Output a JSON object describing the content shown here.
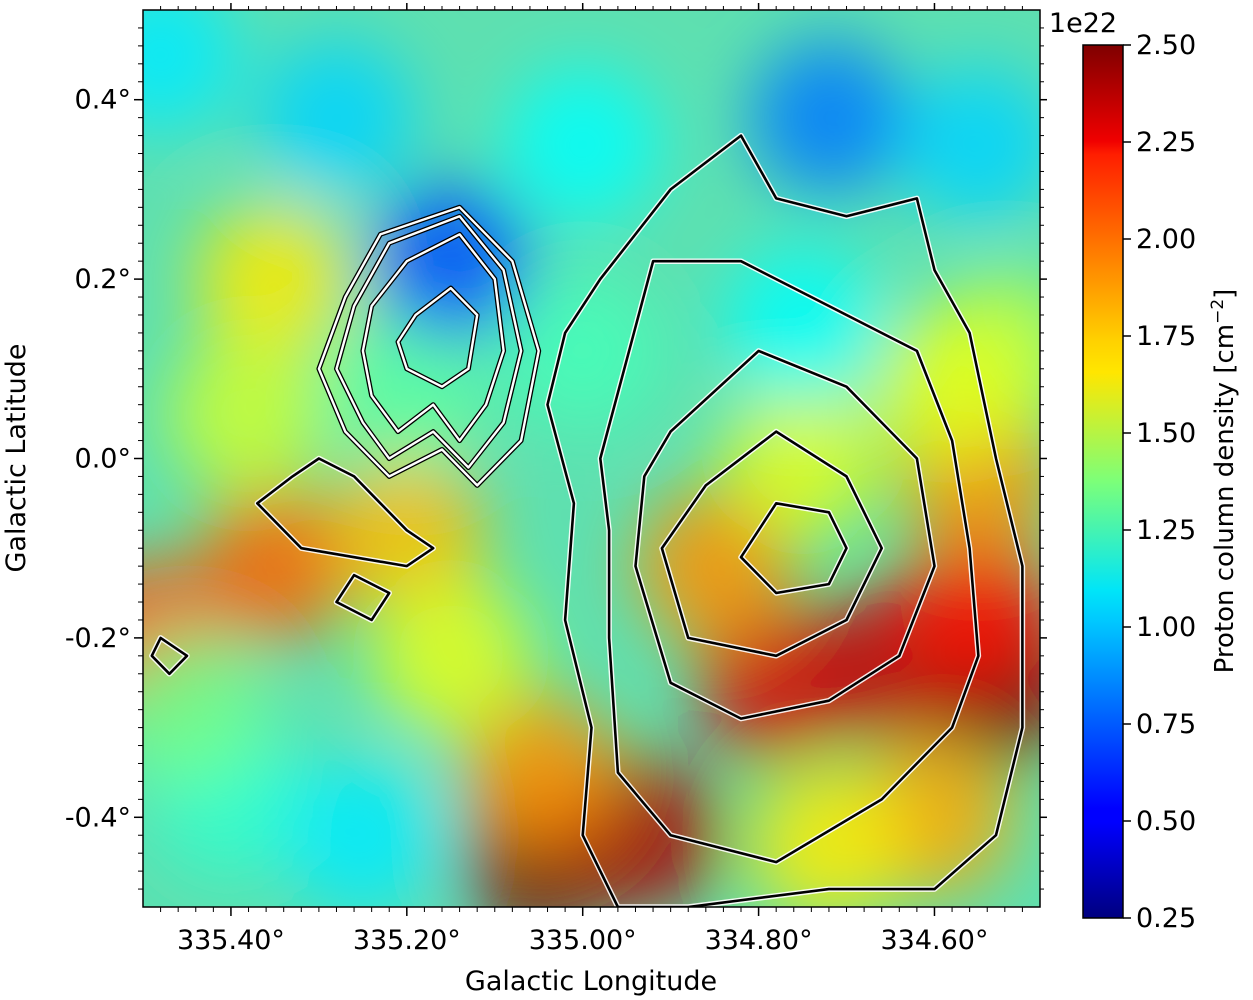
{
  "chart_data": {
    "type": "heatmap",
    "title": "",
    "xlabel": "Galactic Longitude",
    "ylabel": "Galactic Latitude",
    "x_range_deg": [
      335.5,
      334.48
    ],
    "y_range_deg": [
      -0.5,
      0.5
    ],
    "x_ticks": [
      {
        "value": 335.4,
        "label": "335.40°"
      },
      {
        "value": 335.2,
        "label": "335.20°"
      },
      {
        "value": 335.0,
        "label": "335.00°"
      },
      {
        "value": 334.8,
        "label": "334.80°"
      },
      {
        "value": 334.6,
        "label": "334.60°"
      }
    ],
    "y_ticks": [
      {
        "value": 0.4,
        "label": "0.4°"
      },
      {
        "value": 0.2,
        "label": "0.2°"
      },
      {
        "value": 0.0,
        "label": "0.0°"
      },
      {
        "value": -0.2,
        "label": "-0.2°"
      },
      {
        "value": -0.4,
        "label": "-0.4°"
      }
    ],
    "colorbar": {
      "label": "Proton column density [cm",
      "label_exponent": "−2",
      "label_close": "]",
      "offset_text": "1e22",
      "colormap": "jet",
      "range": [
        0.25,
        2.5
      ],
      "ticks": [
        {
          "value": 0.25,
          "label": "0.25"
        },
        {
          "value": 0.5,
          "label": "0.50"
        },
        {
          "value": 0.75,
          "label": "0.75"
        },
        {
          "value": 1.0,
          "label": "1.00"
        },
        {
          "value": 1.25,
          "label": "1.25"
        },
        {
          "value": 1.5,
          "label": "1.50"
        },
        {
          "value": 1.75,
          "label": "1.75"
        },
        {
          "value": 2.0,
          "label": "2.00"
        },
        {
          "value": 2.25,
          "label": "2.25"
        },
        {
          "value": 2.5,
          "label": "2.50"
        }
      ]
    },
    "features": [
      {
        "l": 335.05,
        "b": -0.45,
        "value": 2.5
      },
      {
        "l": 334.93,
        "b": -0.42,
        "value": 2.4
      },
      {
        "l": 334.78,
        "b": -0.25,
        "value": 2.3
      },
      {
        "l": 334.65,
        "b": -0.23,
        "value": 2.35
      },
      {
        "l": 334.52,
        "b": -0.25,
        "value": 2.5
      },
      {
        "l": 334.55,
        "b": -0.17,
        "value": 2.2
      },
      {
        "l": 334.85,
        "b": -0.12,
        "value": 1.9
      },
      {
        "l": 334.55,
        "b": -0.02,
        "value": 1.9
      },
      {
        "l": 334.75,
        "b": 0.0,
        "value": 1.6
      },
      {
        "l": 335.35,
        "b": -0.12,
        "value": 2.0
      },
      {
        "l": 335.5,
        "b": -0.2,
        "value": 2.05
      },
      {
        "l": 335.2,
        "b": -0.08,
        "value": 1.8
      },
      {
        "l": 335.05,
        "b": -0.35,
        "value": 1.9
      },
      {
        "l": 335.35,
        "b": 0.2,
        "value": 1.7
      },
      {
        "l": 335.38,
        "b": 0.05,
        "value": 1.55
      },
      {
        "l": 335.2,
        "b": 0.08,
        "value": 1.3
      },
      {
        "l": 335.15,
        "b": 0.22,
        "value": 0.7
      },
      {
        "l": 335.28,
        "b": 0.38,
        "value": 1.0
      },
      {
        "l": 335.0,
        "b": 0.35,
        "value": 1.1
      },
      {
        "l": 334.72,
        "b": 0.38,
        "value": 0.8
      },
      {
        "l": 334.55,
        "b": 0.35,
        "value": 1.0
      },
      {
        "l": 334.75,
        "b": 0.15,
        "value": 1.1
      },
      {
        "l": 335.0,
        "b": 0.12,
        "value": 1.25
      },
      {
        "l": 335.4,
        "b": -0.38,
        "value": 1.2
      },
      {
        "l": 335.25,
        "b": -0.42,
        "value": 1.05
      },
      {
        "l": 335.45,
        "b": -0.28,
        "value": 1.35
      },
      {
        "l": 335.15,
        "b": -0.22,
        "value": 1.6
      },
      {
        "l": 334.6,
        "b": -0.4,
        "value": 1.85
      },
      {
        "l": 334.72,
        "b": -0.43,
        "value": 1.7
      },
      {
        "l": 334.52,
        "b": 0.12,
        "value": 1.5
      },
      {
        "l": 334.58,
        "b": 0.08,
        "value": 1.6
      },
      {
        "l": 335.48,
        "b": 0.45,
        "value": 1.05
      }
    ],
    "contours_black": [
      [
        [
          335.04,
          0.06
        ],
        [
          335.02,
          0.14
        ],
        [
          334.98,
          0.2
        ],
        [
          334.9,
          0.3
        ],
        [
          334.82,
          0.36
        ],
        [
          334.78,
          0.29
        ],
        [
          334.7,
          0.27
        ],
        [
          334.62,
          0.29
        ],
        [
          334.6,
          0.21
        ],
        [
          334.56,
          0.14
        ],
        [
          334.53,
          0.0
        ],
        [
          334.5,
          -0.12
        ],
        [
          334.5,
          -0.3
        ],
        [
          334.53,
          -0.42
        ],
        [
          334.6,
          -0.48
        ],
        [
          334.72,
          -0.48
        ],
        [
          334.88,
          -0.5
        ],
        [
          334.96,
          -0.5
        ],
        [
          335.0,
          -0.42
        ],
        [
          334.99,
          -0.3
        ],
        [
          335.02,
          -0.18
        ],
        [
          335.01,
          -0.05
        ],
        [
          335.04,
          0.06
        ]
      ],
      [
        [
          334.98,
          0.0
        ],
        [
          334.92,
          0.22
        ],
        [
          334.82,
          0.22
        ],
        [
          334.72,
          0.17
        ],
        [
          334.62,
          0.12
        ],
        [
          334.58,
          0.02
        ],
        [
          334.56,
          -0.1
        ],
        [
          334.55,
          -0.22
        ],
        [
          334.58,
          -0.3
        ],
        [
          334.66,
          -0.38
        ],
        [
          334.78,
          -0.45
        ],
        [
          334.9,
          -0.42
        ],
        [
          334.96,
          -0.35
        ],
        [
          334.97,
          -0.2
        ],
        [
          334.97,
          -0.08
        ],
        [
          334.98,
          0.0
        ]
      ],
      [
        [
          334.9,
          0.03
        ],
        [
          334.8,
          0.12
        ],
        [
          334.7,
          0.08
        ],
        [
          334.62,
          0.0
        ],
        [
          334.6,
          -0.12
        ],
        [
          334.64,
          -0.22
        ],
        [
          334.72,
          -0.27
        ],
        [
          334.82,
          -0.29
        ],
        [
          334.9,
          -0.25
        ],
        [
          334.94,
          -0.12
        ],
        [
          334.93,
          -0.02
        ],
        [
          334.9,
          0.03
        ]
      ],
      [
        [
          334.86,
          -0.03
        ],
        [
          334.78,
          0.03
        ],
        [
          334.7,
          -0.02
        ],
        [
          334.66,
          -0.1
        ],
        [
          334.7,
          -0.18
        ],
        [
          334.78,
          -0.22
        ],
        [
          334.88,
          -0.2
        ],
        [
          334.91,
          -0.1
        ],
        [
          334.86,
          -0.03
        ]
      ],
      [
        [
          334.78,
          -0.05
        ],
        [
          334.72,
          -0.06
        ],
        [
          334.7,
          -0.1
        ],
        [
          334.72,
          -0.14
        ],
        [
          334.78,
          -0.15
        ],
        [
          334.82,
          -0.11
        ],
        [
          334.78,
          -0.05
        ]
      ],
      [
        [
          335.3,
          0.0
        ],
        [
          335.26,
          -0.02
        ],
        [
          335.23,
          -0.05
        ],
        [
          335.2,
          -0.08
        ],
        [
          335.17,
          -0.1
        ],
        [
          335.2,
          -0.12
        ],
        [
          335.26,
          -0.11
        ],
        [
          335.32,
          -0.1
        ],
        [
          335.37,
          -0.05
        ],
        [
          335.33,
          -0.02
        ],
        [
          335.3,
          0.0
        ]
      ],
      [
        [
          335.26,
          -0.13
        ],
        [
          335.22,
          -0.15
        ],
        [
          335.24,
          -0.18
        ],
        [
          335.28,
          -0.16
        ],
        [
          335.26,
          -0.13
        ]
      ],
      [
        [
          335.48,
          -0.2
        ],
        [
          335.45,
          -0.22
        ],
        [
          335.47,
          -0.24
        ],
        [
          335.49,
          -0.22
        ],
        [
          335.48,
          -0.2
        ]
      ]
    ],
    "contours_white": [
      [
        [
          335.23,
          0.25
        ],
        [
          335.14,
          0.28
        ],
        [
          335.08,
          0.22
        ],
        [
          335.05,
          0.12
        ],
        [
          335.07,
          0.02
        ],
        [
          335.12,
          -0.03
        ],
        [
          335.16,
          0.01
        ],
        [
          335.22,
          -0.02
        ],
        [
          335.27,
          0.03
        ],
        [
          335.3,
          0.1
        ],
        [
          335.27,
          0.18
        ],
        [
          335.23,
          0.25
        ]
      ],
      [
        [
          335.22,
          0.24
        ],
        [
          335.14,
          0.27
        ],
        [
          335.09,
          0.21
        ],
        [
          335.07,
          0.12
        ],
        [
          335.09,
          0.04
        ],
        [
          335.13,
          -0.01
        ],
        [
          335.17,
          0.03
        ],
        [
          335.22,
          0.0
        ],
        [
          335.25,
          0.04
        ],
        [
          335.28,
          0.1
        ],
        [
          335.26,
          0.17
        ],
        [
          335.22,
          0.24
        ]
      ],
      [
        [
          335.2,
          0.22
        ],
        [
          335.14,
          0.25
        ],
        [
          335.1,
          0.2
        ],
        [
          335.09,
          0.12
        ],
        [
          335.11,
          0.06
        ],
        [
          335.14,
          0.02
        ],
        [
          335.17,
          0.06
        ],
        [
          335.21,
          0.03
        ],
        [
          335.24,
          0.07
        ],
        [
          335.25,
          0.12
        ],
        [
          335.24,
          0.17
        ],
        [
          335.2,
          0.22
        ]
      ],
      [
        [
          335.19,
          0.16
        ],
        [
          335.15,
          0.19
        ],
        [
          335.12,
          0.16
        ],
        [
          335.13,
          0.1
        ],
        [
          335.16,
          0.08
        ],
        [
          335.2,
          0.1
        ],
        [
          335.21,
          0.13
        ],
        [
          335.19,
          0.16
        ]
      ]
    ]
  }
}
